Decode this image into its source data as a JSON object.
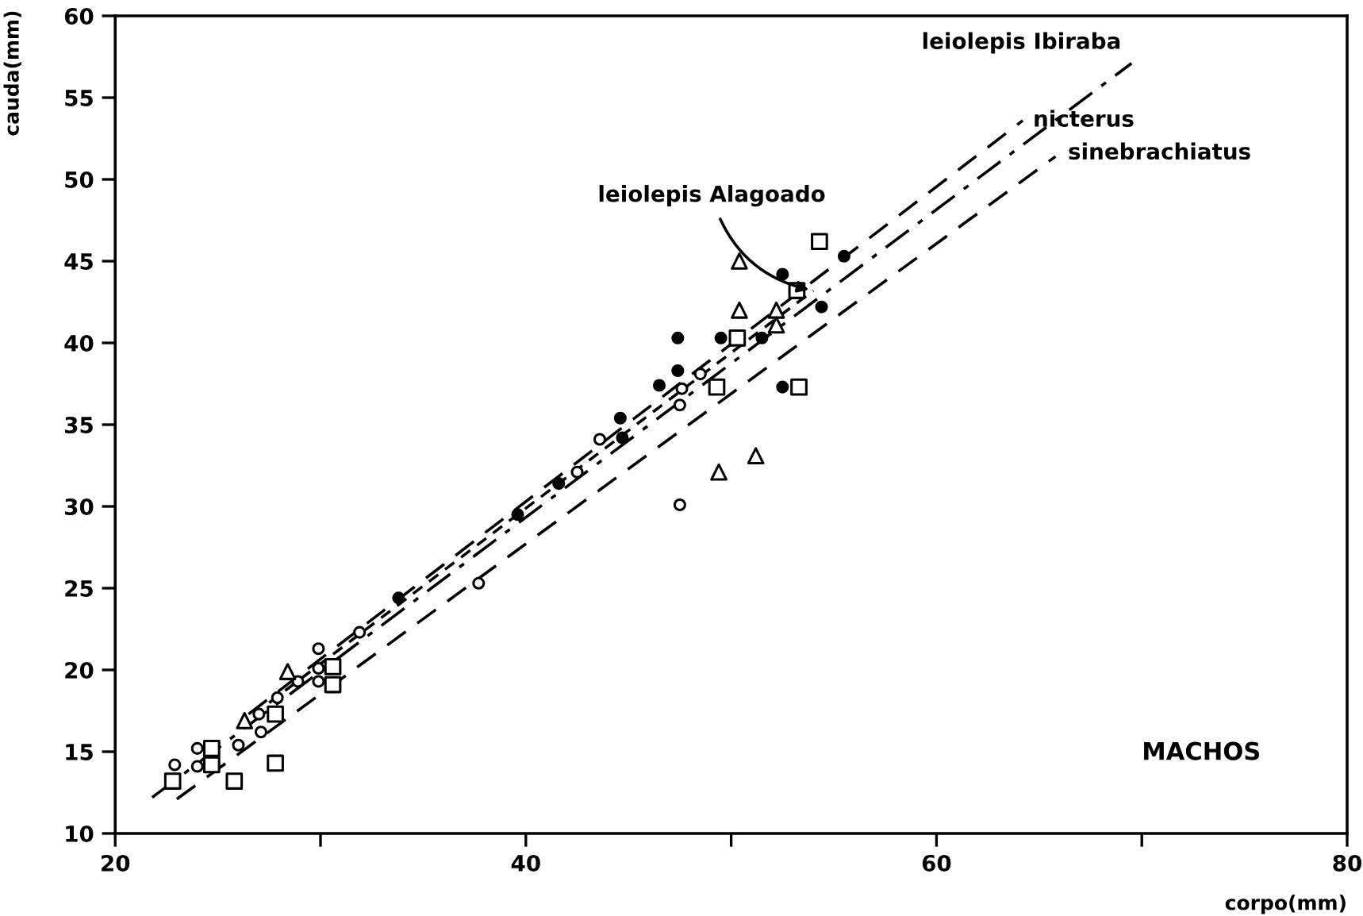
{
  "chart_data": {
    "type": "scatter",
    "xlabel": "corpo(mm)",
    "ylabel": "cauda(mm)",
    "xlim": [
      20,
      80
    ],
    "ylim": [
      10,
      60
    ],
    "xticks": [
      20,
      {
        "value": 30,
        "label": null
      },
      40,
      {
        "value": 50,
        "label": null
      },
      60,
      {
        "value": 70,
        "label": null
      },
      80
    ],
    "yticks": [
      10,
      15,
      20,
      25,
      30,
      35,
      40,
      45,
      50,
      55,
      60
    ],
    "grid": false,
    "legend": false,
    "series": [
      {
        "type": "scatter",
        "marker": "circle",
        "color": "#ffffff",
        "x": [
          22.9,
          24.0,
          24.0,
          26.0,
          27.0,
          27.1,
          27.9,
          28.9,
          29.9,
          29.9,
          29.9,
          31.9,
          37.7,
          42.5,
          43.6,
          47.5,
          47.5,
          48.5,
          47.6
        ],
        "values": [
          14.2,
          15.2,
          14.1,
          15.4,
          17.3,
          16.2,
          18.3,
          19.3,
          21.3,
          20.1,
          19.3,
          22.3,
          25.3,
          32.1,
          34.1,
          36.2,
          30.1,
          38.1,
          37.2
        ]
      },
      {
        "type": "scatter",
        "marker": "circle",
        "color": "#000000",
        "x": [
          33.8,
          39.6,
          41.6,
          44.6,
          44.7,
          46.5,
          47.4,
          47.4,
          49.5,
          51.5,
          52.5,
          52.5,
          54.4,
          55.5
        ],
        "values": [
          24.4,
          29.5,
          31.4,
          35.4,
          34.2,
          37.4,
          38.3,
          40.3,
          40.3,
          40.3,
          44.2,
          37.3,
          42.2,
          45.3
        ]
      },
      {
        "type": "scatter",
        "marker": "square",
        "color": "#ffffff",
        "x": [
          22.8,
          24.7,
          24.7,
          25.8,
          27.8,
          27.8,
          30.6,
          30.6,
          49.3,
          50.3,
          53.2,
          53.3,
          54.3
        ],
        "values": [
          13.2,
          15.2,
          14.2,
          13.2,
          17.3,
          14.3,
          20.2,
          19.1,
          37.3,
          40.3,
          43.2,
          37.3,
          46.2
        ]
      },
      {
        "type": "scatter",
        "marker": "triangle",
        "color": "#ffffff",
        "x": [
          26.3,
          28.4,
          49.4,
          50.4,
          50.4,
          51.2,
          52.2,
          52.2
        ],
        "values": [
          16.9,
          19.9,
          32.1,
          45.0,
          42.0,
          33.1,
          42.0,
          41.1
        ]
      },
      {
        "type": "line",
        "name": "nicterus",
        "color": "#000000",
        "line_style": "dashed",
        "x": [
          26.5,
          64.2
        ],
        "values": [
          17.3,
          53.6
        ]
      },
      {
        "type": "line",
        "name": "leiolepis Ibiraba",
        "color": "#000000",
        "line_style": "dashdot",
        "x": [
          21.8,
          69.5
        ],
        "values": [
          12.2,
          57.1
        ]
      },
      {
        "type": "line",
        "name": "sinebrachiatus",
        "color": "#000000",
        "line_style": "dashed",
        "x": [
          23.0,
          65.8
        ],
        "values": [
          12.1,
          51.4
        ]
      },
      {
        "type": "line",
        "name": "leiolepis Alagoado",
        "color": "#000000",
        "line_style": "dotted",
        "x": [
          27.5,
          54.0
        ],
        "values": [
          18.0,
          43.2
        ]
      }
    ],
    "annotations": [
      "MACHOS"
    ]
  }
}
